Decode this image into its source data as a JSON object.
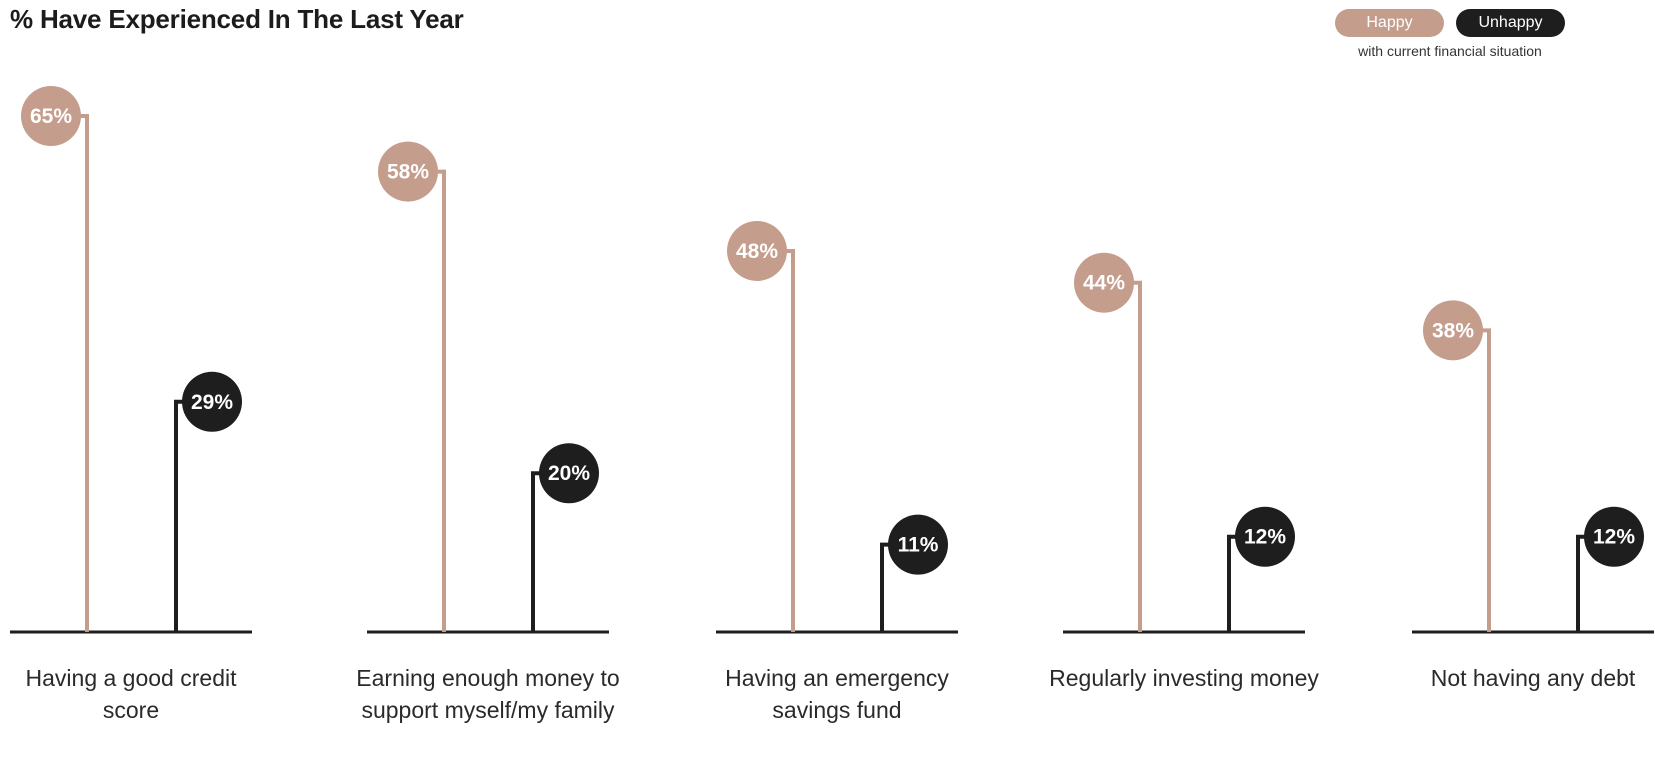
{
  "chart_data": {
    "type": "bar",
    "title": "% Have Experienced In The Last Year",
    "legend": {
      "placement": "top-right",
      "note": "with current financial situation"
    },
    "categories": [
      "Having a good credit score",
      "Earning enough money to support myself/my family",
      "Having an emergency savings fund",
      "Regularly investing money",
      "Not having any debt"
    ],
    "series": [
      {
        "name": "Happy",
        "color": "#c59d8c",
        "values": [
          65,
          58,
          48,
          44,
          38
        ],
        "labels": [
          "65%",
          "58%",
          "48%",
          "44%",
          "38%"
        ]
      },
      {
        "name": "Unhappy",
        "color": "#1e1e1e",
        "values": [
          29,
          20,
          11,
          12,
          12
        ],
        "labels": [
          "29%",
          "20%",
          "11%",
          "12%",
          "12%"
        ]
      }
    ],
    "ylim": [
      0,
      65
    ],
    "grid": false
  }
}
